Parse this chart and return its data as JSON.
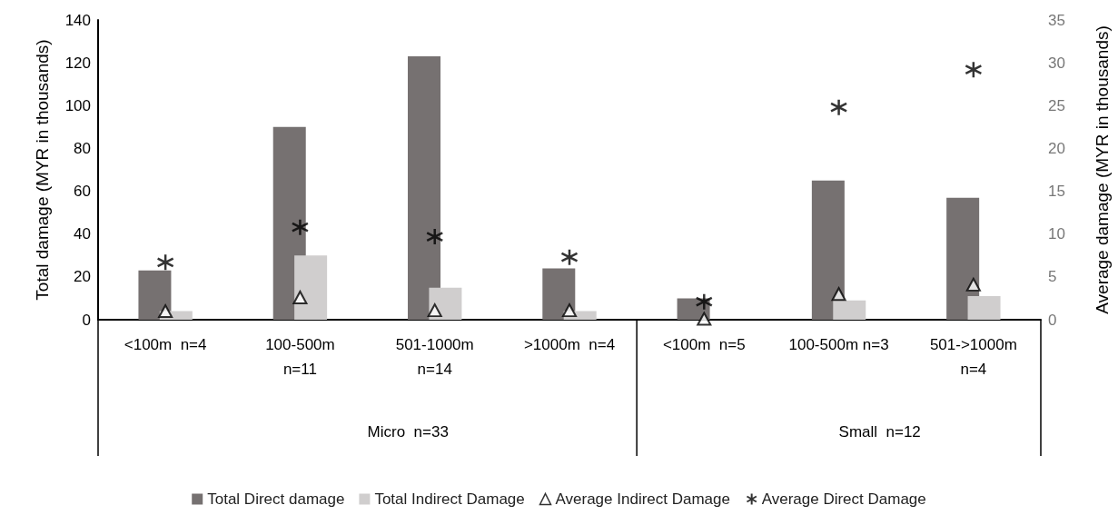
{
  "chart_data": {
    "type": "bar",
    "ylabel": "Total damage (MYR in thousands)",
    "y2label": "Average damage (MYR in thousands)",
    "categories": [
      "<100m  n=4",
      "100-500m\nn=11",
      "501-1000m\nn=14",
      ">1000m  n=4",
      "<100m  n=5",
      "100-500m n=3",
      "501->1000m\nn=4"
    ],
    "series": [
      {
        "name": "Total Direct damage",
        "color": "#767171",
        "values": [
          23,
          90,
          123,
          24,
          10,
          65,
          57
        ]
      },
      {
        "name": "Total Indirect Damage",
        "color": "#d0cece",
        "values": [
          4,
          30,
          15,
          4,
          null,
          9,
          11
        ]
      },
      {
        "name": "Average Indirect Damage",
        "type": "scatter",
        "axis": "y2",
        "marker": "triangle",
        "color": "#000000",
        "values": [
          1,
          2.6,
          1.1,
          1.1,
          0.1,
          3,
          4.1
        ]
      },
      {
        "name": "Average Direct Damage",
        "type": "scatter",
        "axis": "y2",
        "marker": "cross",
        "color": "#000000",
        "values": [
          6.7,
          10.8,
          9.7,
          7.3,
          2.1,
          24.8,
          29.2
        ]
      }
    ],
    "ylim": [
      0,
      140
    ],
    "yticks": [
      0,
      20,
      40,
      60,
      80,
      100,
      120,
      140
    ],
    "y2lim": [
      0,
      35
    ],
    "y2ticks": [
      0,
      5,
      10,
      15,
      20,
      25,
      30,
      35
    ],
    "annotations": [
      "Micro  n=33",
      "Small  n=12"
    ],
    "grid": false,
    "legend": "bottom"
  }
}
